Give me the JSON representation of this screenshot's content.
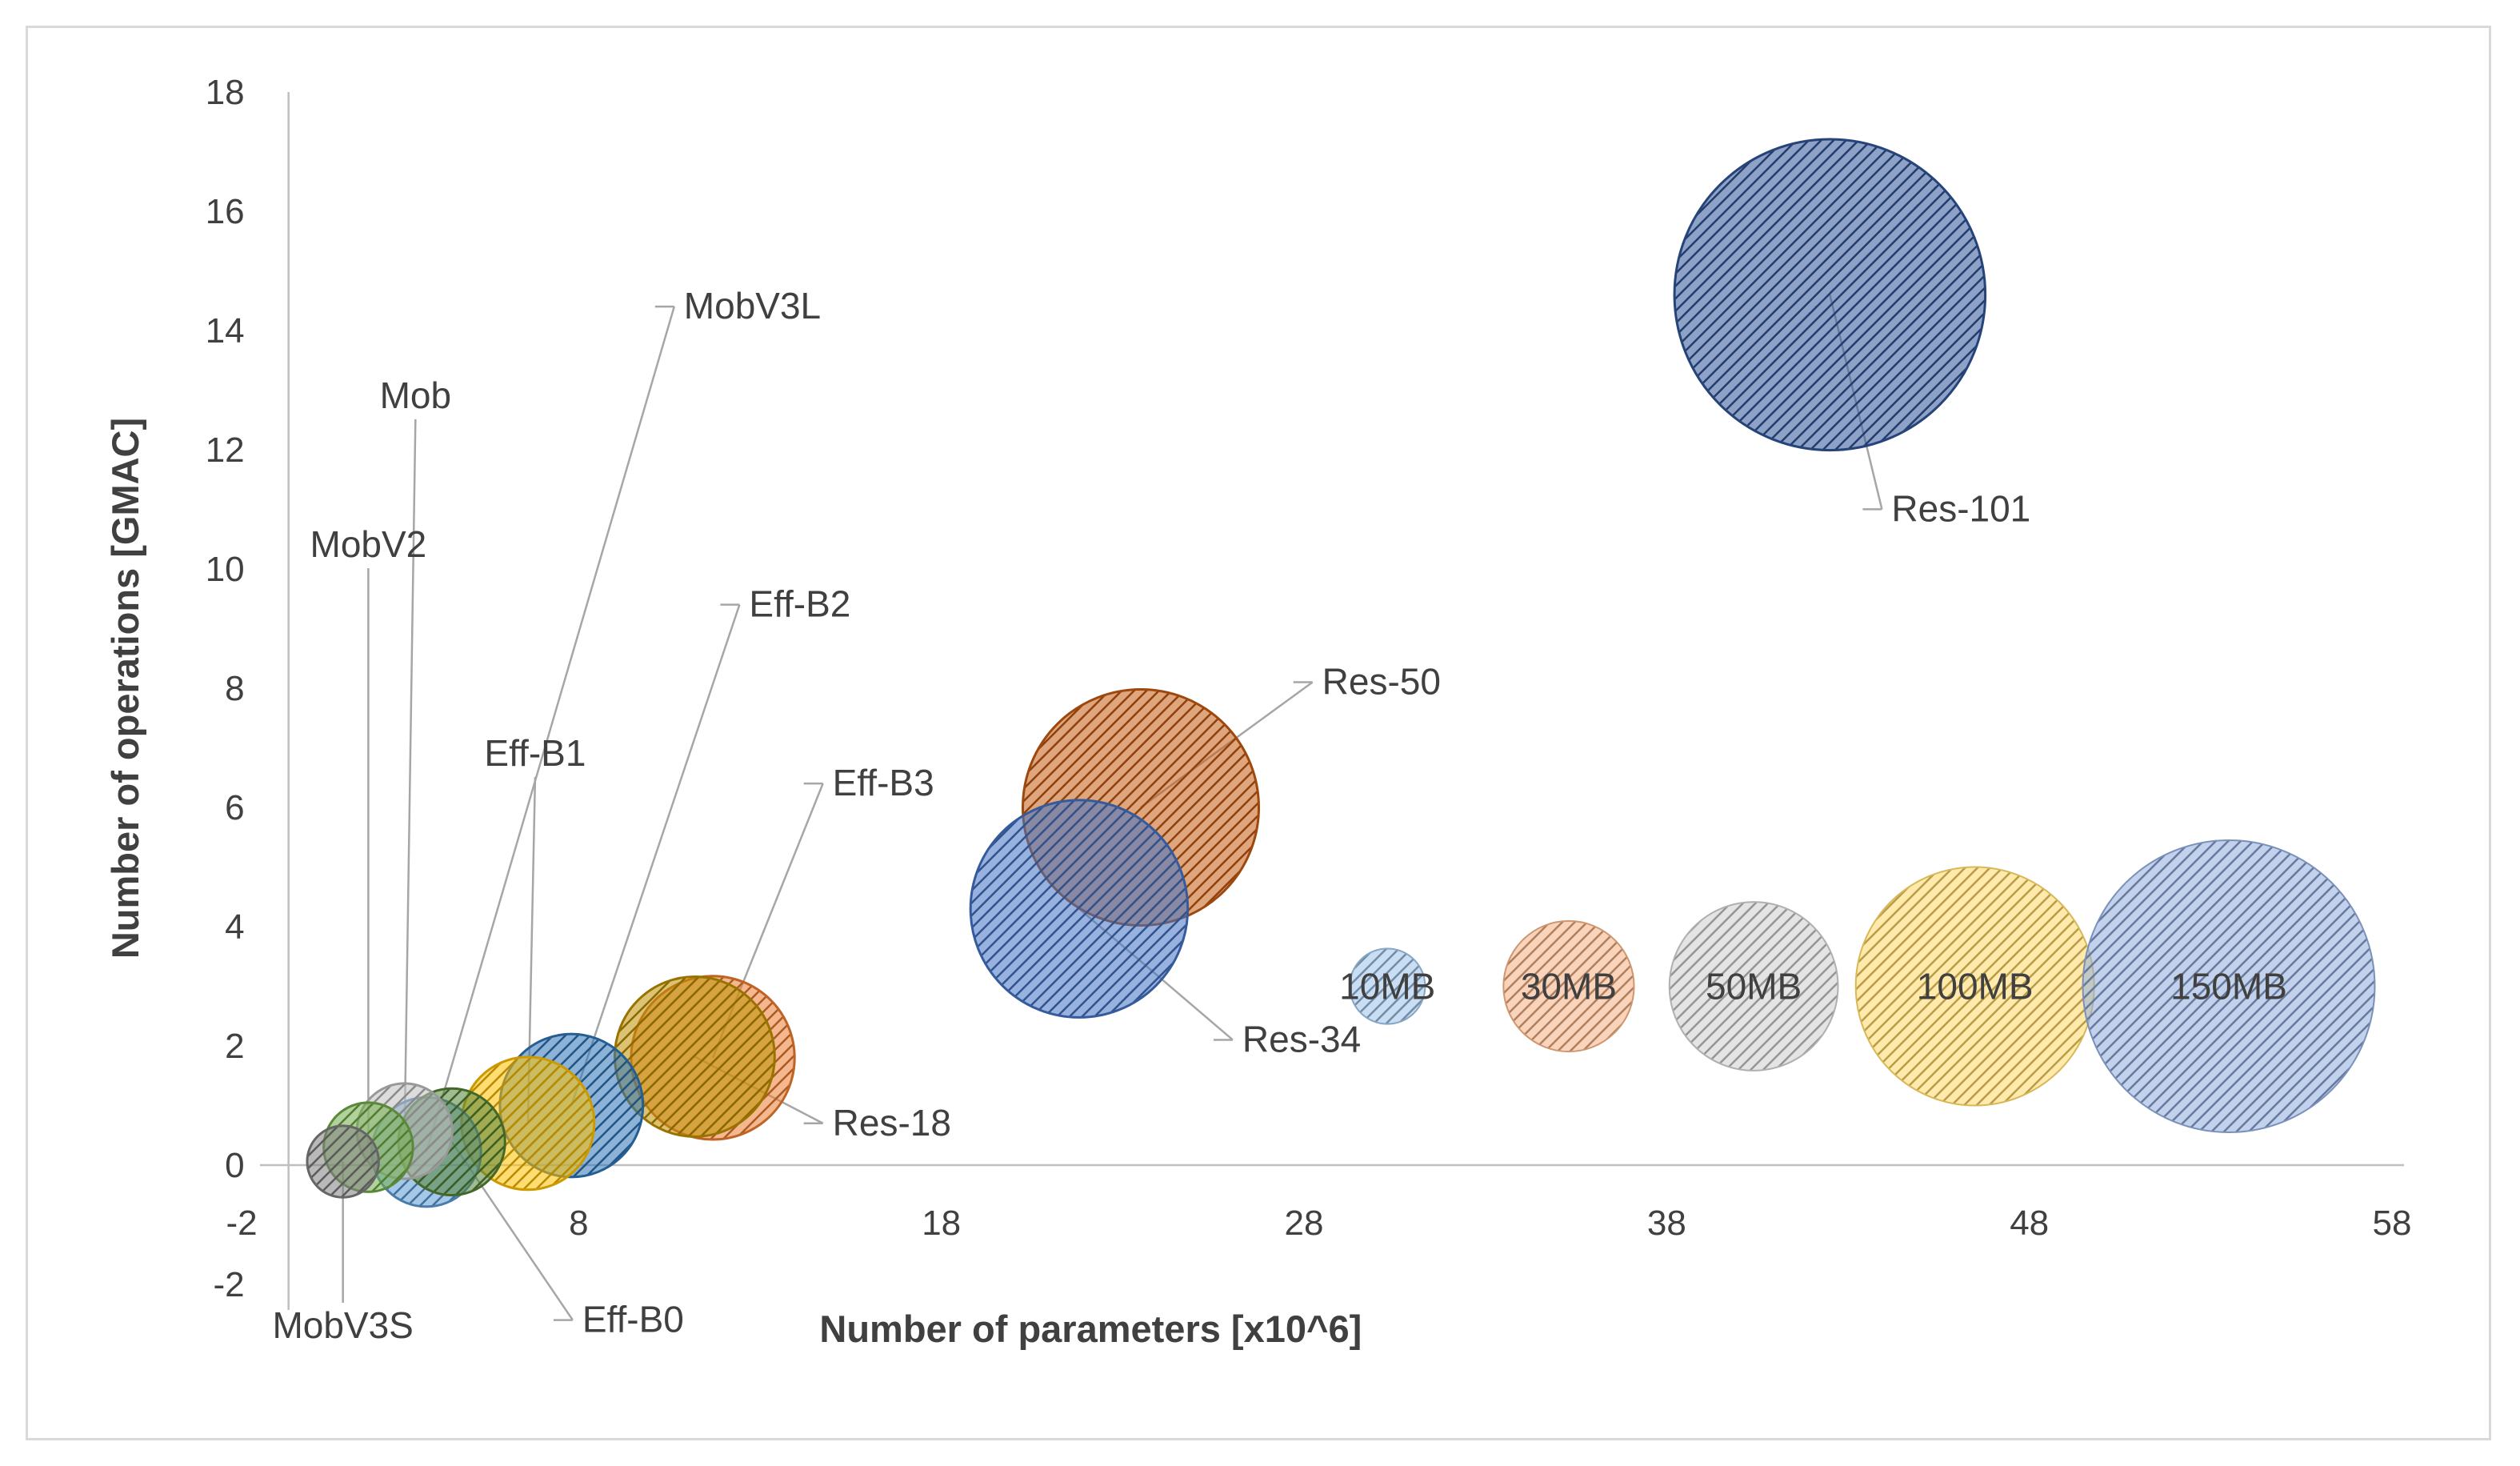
{
  "chart_data": {
    "type": "bubble",
    "title": "",
    "xlabel": "Number of parameters [x10^6]",
    "ylabel": "Number of operations [GMAC]",
    "xlim": [
      -2,
      58
    ],
    "ylim": [
      -2,
      18
    ],
    "x_ticks": [
      "-2",
      "8",
      "18",
      "28",
      "38",
      "48",
      "58"
    ],
    "y_ticks": [
      "-2",
      "0",
      "2",
      "4",
      "6",
      "8",
      "10",
      "12",
      "14",
      "16",
      "18"
    ],
    "grid": false,
    "pattern": "diagonal-hatch",
    "points": [
      {
        "name": "MobV3S",
        "x": 1.5,
        "y": 0.06,
        "size_mb": 9,
        "color": "#7f7f7f",
        "label_at": [
          1.5,
          -2.9
        ]
      },
      {
        "name": "MobV2",
        "x": 2.2,
        "y": 0.3,
        "size_mb": 14,
        "color": "#70ad47",
        "label_at": [
          2.2,
          10.2
        ]
      },
      {
        "name": "Mob",
        "x": 3.2,
        "y": 0.57,
        "size_mb": 16,
        "color": "#bfbfbf",
        "label_at": [
          3.5,
          12.7
        ]
      },
      {
        "name": "MobV3L",
        "x": 3.8,
        "y": 0.22,
        "size_mb": 21,
        "color": "#5b9bd5",
        "label_at": [
          10.9,
          14.2
        ]
      },
      {
        "name": "Eff-B0",
        "x": 4.5,
        "y": 0.39,
        "size_mb": 20,
        "color": "#548235",
        "label_at": [
          8.1,
          -2.8
        ]
      },
      {
        "name": "Eff-B1",
        "x": 6.6,
        "y": 0.7,
        "size_mb": 31,
        "color": "#ffc000",
        "label_at": [
          6.8,
          6.7
        ]
      },
      {
        "name": "Eff-B2",
        "x": 7.8,
        "y": 1.0,
        "size_mb": 36,
        "color": "#2e75b6",
        "label_at": [
          12.7,
          9.2
        ]
      },
      {
        "name": "Eff-B3",
        "x": 11.7,
        "y": 1.8,
        "size_mb": 47,
        "color": "#ed7d31",
        "label_at": [
          15.0,
          6.2
        ]
      },
      {
        "name": "Res-18",
        "x": 11.2,
        "y": 1.82,
        "size_mb": 45,
        "color": "#bf9000",
        "label_at": [
          15.0,
          0.5
        ]
      },
      {
        "name": "Res-34",
        "x": 21.8,
        "y": 4.3,
        "size_mb": 83,
        "color": "#4472c4",
        "label_at": [
          26.3,
          1.9
        ]
      },
      {
        "name": "Res-50",
        "x": 23.5,
        "y": 6.0,
        "size_mb": 98,
        "color": "#c55a11",
        "label_at": [
          28.5,
          7.9
        ]
      },
      {
        "name": "Res-101",
        "x": 42.5,
        "y": 14.6,
        "size_mb": 170,
        "color": "#2f5597",
        "label_at": [
          44.2,
          10.8
        ]
      }
    ],
    "legend": {
      "placement": "bottom-right",
      "y": 3.0,
      "items": [
        {
          "label": "10MB",
          "x": 30.3,
          "size_mb": 10,
          "color": "#9dc3e6"
        },
        {
          "label": "30MB",
          "x": 35.3,
          "size_mb": 30,
          "color": "#f4b183"
        },
        {
          "label": "50MB",
          "x": 40.4,
          "size_mb": 50,
          "color": "#d0cece"
        },
        {
          "label": "100MB",
          "x": 46.5,
          "size_mb": 100,
          "color": "#ffd966"
        },
        {
          "label": "150MB",
          "x": 53.5,
          "size_mb": 150,
          "color": "#8faadc"
        }
      ]
    }
  }
}
